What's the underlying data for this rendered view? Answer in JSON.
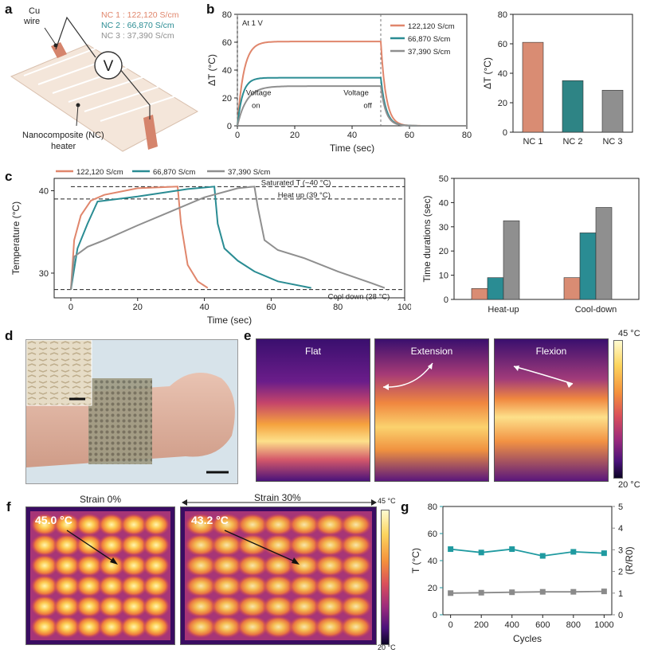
{
  "panel_letters": {
    "a": "a",
    "b": "b",
    "c": "c",
    "d": "d",
    "e": "e",
    "f": "f",
    "g": "g"
  },
  "colors": {
    "nc1": "#e0866c",
    "nc2": "#2a8c93",
    "nc3": "#8f8f8f",
    "teal": "#1f9aa0",
    "gray": "#8a8a8a"
  },
  "panel_a": {
    "legend": [
      "NC 1 : 122,120 S/cm",
      "NC 2 : 66,870 S/cm",
      "NC 3 : 37,390 S/cm"
    ],
    "voltmeter": "V",
    "wire_label_1": "Cu",
    "wire_label_2": "wire",
    "heater_label_1": "Nanocomposite  (NC)",
    "heater_label_2": "heater"
  },
  "chart_data": [
    {
      "id": "b_line",
      "type": "line",
      "title": "At 1 V",
      "xlabel": "Time (sec)",
      "ylabel": "ΔT (°C)",
      "xlim": [
        0,
        80
      ],
      "ylim": [
        0,
        80
      ],
      "xticks": [
        0,
        20,
        40,
        60,
        80
      ],
      "yticks": [
        0,
        20,
        40,
        60,
        80
      ],
      "annotations": [
        "Voltage",
        "on",
        "Voltage",
        "off"
      ],
      "series": [
        {
          "name": "122,120 S/cm",
          "color": "#e0866c",
          "plateau": 60.5
        },
        {
          "name": "66,870 S/cm",
          "color": "#2a8c93",
          "plateau": 34.5
        },
        {
          "name": "37,390 S/cm",
          "color": "#8f8f8f",
          "plateau": 28.5
        }
      ]
    },
    {
      "id": "b_bar",
      "type": "bar",
      "ylabel": "ΔT (°C)",
      "ylim": [
        0,
        80
      ],
      "yticks": [
        0,
        20,
        40,
        60,
        80
      ],
      "categories": [
        "NC 1",
        "NC 2",
        "NC 3"
      ],
      "values": [
        61,
        35,
        28.5
      ],
      "colors": [
        "#d98c73",
        "#2e8485",
        "#8f8f8f"
      ]
    },
    {
      "id": "c_line",
      "type": "line",
      "xlabel": "Time (sec)",
      "ylabel": "Temperature (°C)",
      "xlim": [
        -5,
        100
      ],
      "ylim": [
        27,
        41.5
      ],
      "xticks": [
        0,
        20,
        40,
        60,
        80,
        100
      ],
      "yticks": [
        30,
        40
      ],
      "legend": [
        "122,120 S/cm",
        "66,870 S/cm",
        "37,390 S/cm"
      ],
      "annotations": [
        "Saturated T (~40 °C)",
        "Heat up (39 °C)",
        "Cool down (28 °C)"
      ],
      "series": [
        {
          "name": "122,120 S/cm",
          "color": "#e0866c",
          "x": [
            0,
            1,
            3,
            6,
            10,
            20,
            32,
            33,
            35,
            38,
            41
          ],
          "y": [
            28,
            34,
            37,
            38.8,
            39.5,
            40.3,
            40.5,
            36,
            31,
            29,
            28.2
          ]
        },
        {
          "name": "66,870 S/cm",
          "color": "#2a8c93",
          "x": [
            0,
            2,
            5,
            8,
            20,
            35,
            43,
            44,
            46,
            50,
            55,
            62,
            72
          ],
          "y": [
            28,
            33,
            36,
            38.7,
            39.3,
            40.2,
            40.5,
            36,
            33,
            31.5,
            30.2,
            29,
            28.2
          ]
        },
        {
          "name": "37,390 S/cm",
          "color": "#8f8f8f",
          "x": [
            0,
            1,
            5,
            10,
            20,
            30,
            40,
            50,
            55,
            56,
            58,
            62,
            70,
            80,
            90,
            94
          ],
          "y": [
            28,
            32,
            33.2,
            34,
            35.8,
            37.5,
            39.2,
            40.3,
            40.5,
            38,
            34,
            32.8,
            31.8,
            30.2,
            28.8,
            28.2
          ]
        }
      ]
    },
    {
      "id": "c_bar",
      "type": "bar",
      "ylabel": "Time durations (sec)",
      "ylim": [
        0,
        50
      ],
      "yticks": [
        0,
        10,
        20,
        30,
        40,
        50
      ],
      "categories": [
        "Heat-up",
        "Cool-down"
      ],
      "series": [
        {
          "name": "NC 1",
          "values": [
            4.5,
            9
          ],
          "color": "#d98c73"
        },
        {
          "name": "NC 2",
          "values": [
            9,
            27.5
          ],
          "color": "#2a8c93"
        },
        {
          "name": "NC 3",
          "values": [
            32.5,
            38
          ],
          "color": "#8f8f8f"
        }
      ]
    },
    {
      "id": "g_line",
      "type": "line",
      "xlabel": "Cycles",
      "ylabel": "T (°C)",
      "y2label": "(R/R0)",
      "xlim": [
        -50,
        1050
      ],
      "ylim": [
        0,
        80
      ],
      "y2lim": [
        0,
        5
      ],
      "xticks": [
        0,
        200,
        400,
        600,
        800,
        1000
      ],
      "yticks": [
        0,
        20,
        40,
        60,
        80
      ],
      "y2ticks": [
        0,
        1,
        2,
        3,
        4,
        5
      ],
      "series": [
        {
          "name": "T",
          "axis": "left",
          "color": "#1f9aa0",
          "x": [
            0,
            200,
            400,
            600,
            800,
            1000
          ],
          "y": [
            48.5,
            46,
            48.5,
            43.5,
            46.5,
            45.5
          ]
        },
        {
          "name": "R/R0",
          "axis": "right",
          "color": "#8a8a8a",
          "x": [
            0,
            200,
            400,
            600,
            800,
            1000
          ],
          "y": [
            1.0,
            1.02,
            1.04,
            1.06,
            1.06,
            1.08
          ]
        }
      ]
    }
  ],
  "panel_e": {
    "titles": [
      "Flat",
      "Extension",
      "Flexion"
    ],
    "scale_max": "45 °C",
    "scale_min": "20 °C"
  },
  "panel_f": {
    "title_left": "Strain  0%",
    "title_right": "Strain  30%",
    "temp_left": "45.0 °C",
    "temp_right": "43.2 °C",
    "scale_max": "45 °C",
    "scale_min": "20 °C"
  }
}
